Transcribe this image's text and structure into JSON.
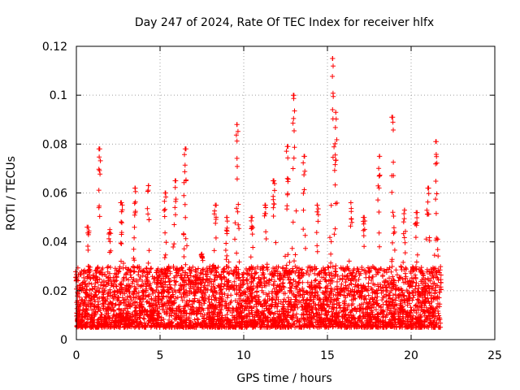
{
  "chart_data": {
    "type": "scatter",
    "title": "Day 247 of 2024, Rate Of TEC Index for receiver hlfx",
    "xlabel": "GPS time / hours",
    "ylabel": "ROTI / TECUs",
    "xlim": [
      0,
      25
    ],
    "ylim": [
      0,
      0.12
    ],
    "xticks": [
      0,
      5,
      10,
      15,
      20,
      25
    ],
    "xtick_labels": [
      "0",
      "5",
      "10",
      "15",
      "20",
      "25"
    ],
    "yticks": [
      0,
      0.02,
      0.04,
      0.06,
      0.08,
      0.1,
      0.12
    ],
    "ytick_labels": [
      "0",
      "0.02",
      "0.04",
      "0.06",
      "0.08",
      "0.1",
      "0.12"
    ],
    "grid": true,
    "marker": "+",
    "color": "#ff0000",
    "series": [
      {
        "name": "ROTI",
        "x_range": [
          0,
          21.8
        ],
        "typical_range": [
          0.005,
          0.03
        ],
        "peaks": [
          {
            "x": 0.0,
            "y": 0.024
          },
          {
            "x": 0.7,
            "y": 0.046
          },
          {
            "x": 1.4,
            "y": 0.078
          },
          {
            "x": 2.0,
            "y": 0.045
          },
          {
            "x": 2.7,
            "y": 0.056
          },
          {
            "x": 3.5,
            "y": 0.062
          },
          {
            "x": 4.3,
            "y": 0.063
          },
          {
            "x": 5.3,
            "y": 0.06
          },
          {
            "x": 5.9,
            "y": 0.065
          },
          {
            "x": 6.5,
            "y": 0.078
          },
          {
            "x": 7.5,
            "y": 0.035
          },
          {
            "x": 8.3,
            "y": 0.055
          },
          {
            "x": 9.0,
            "y": 0.05
          },
          {
            "x": 9.6,
            "y": 0.088
          },
          {
            "x": 10.5,
            "y": 0.05
          },
          {
            "x": 11.3,
            "y": 0.055
          },
          {
            "x": 11.8,
            "y": 0.065
          },
          {
            "x": 12.6,
            "y": 0.079
          },
          {
            "x": 13.0,
            "y": 0.1
          },
          {
            "x": 13.6,
            "y": 0.075
          },
          {
            "x": 14.4,
            "y": 0.055
          },
          {
            "x": 15.3,
            "y": 0.115
          },
          {
            "x": 15.5,
            "y": 0.093
          },
          {
            "x": 16.4,
            "y": 0.056
          },
          {
            "x": 17.2,
            "y": 0.05
          },
          {
            "x": 18.1,
            "y": 0.075
          },
          {
            "x": 18.9,
            "y": 0.091
          },
          {
            "x": 19.6,
            "y": 0.053
          },
          {
            "x": 20.3,
            "y": 0.052
          },
          {
            "x": 21.0,
            "y": 0.062
          },
          {
            "x": 21.5,
            "y": 0.081
          }
        ]
      }
    ]
  }
}
